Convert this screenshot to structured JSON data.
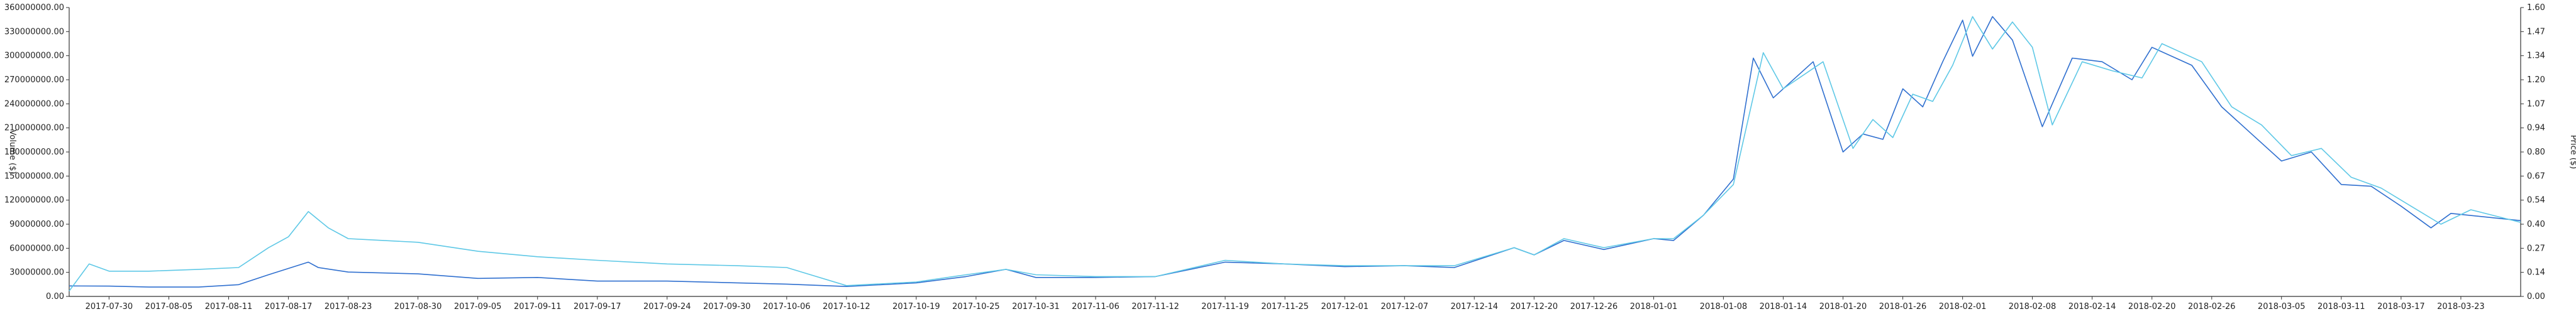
{
  "chart_data": {
    "type": "line",
    "title": "",
    "ylabel_left": "Volume ($)",
    "ylabel_right": "Price ($)",
    "ylim_left": [
      0,
      360000000
    ],
    "ylim_right": [
      0,
      1.6
    ],
    "yticks_left": [
      "0.00",
      "30000000.00",
      "60000000.00",
      "90000000.00",
      "120000000.00",
      "150000000.00",
      "180000000.00",
      "210000000.00",
      "240000000.00",
      "270000000.00",
      "300000000.00",
      "330000000.00",
      "360000000.00"
    ],
    "yticks_right": [
      "0.00",
      "0.14",
      "0.27",
      "0.40",
      "0.54",
      "0.67",
      "0.80",
      "0.94",
      "1.07",
      "1.20",
      "1.34",
      "1.47",
      "1.60"
    ],
    "xlim": [
      "2017-07-26",
      "2018-03-29"
    ],
    "xticks": [
      "2017-07-30",
      "2017-08-05",
      "2017-08-11",
      "2017-08-17",
      "2017-08-23",
      "2017-08-30",
      "2017-09-05",
      "2017-09-11",
      "2017-09-17",
      "2017-09-24",
      "2017-09-30",
      "2017-10-06",
      "2017-10-12",
      "2017-10-19",
      "2017-10-25",
      "2017-10-31",
      "2017-11-06",
      "2017-11-12",
      "2017-11-19",
      "2017-11-25",
      "2017-12-01",
      "2017-12-07",
      "2017-12-14",
      "2017-12-20",
      "2017-12-26",
      "2018-01-01",
      "2018-01-08",
      "2018-01-14",
      "2018-01-20",
      "2018-01-26",
      "2018-02-01",
      "2018-02-08",
      "2018-02-14",
      "2018-02-20",
      "2018-02-26",
      "2018-03-05",
      "2018-03-11",
      "2018-03-17",
      "2018-03-23"
    ],
    "grid": false,
    "colors": {
      "price": "#2f6fcf",
      "volume": "#5ec8e6",
      "axis": "#333333"
    },
    "series": [
      {
        "axis": "right",
        "color": "#2f6fcf",
        "points": [
          [
            "2017-07-26",
            0.058
          ],
          [
            "2017-07-30",
            0.057
          ],
          [
            "2017-08-03",
            0.052
          ],
          [
            "2017-08-08",
            0.052
          ],
          [
            "2017-08-12",
            0.065
          ],
          [
            "2017-08-15",
            0.12
          ],
          [
            "2017-08-19",
            0.19
          ],
          [
            "2017-08-20",
            0.16
          ],
          [
            "2017-08-23",
            0.135
          ],
          [
            "2017-08-30",
            0.125
          ],
          [
            "2017-09-05",
            0.1
          ],
          [
            "2017-09-11",
            0.105
          ],
          [
            "2017-09-17",
            0.085
          ],
          [
            "2017-09-24",
            0.085
          ],
          [
            "2017-10-01",
            0.075
          ],
          [
            "2017-10-06",
            0.068
          ],
          [
            "2017-10-12",
            0.055
          ],
          [
            "2017-10-19",
            0.075
          ],
          [
            "2017-10-24",
            0.11
          ],
          [
            "2017-10-28",
            0.15
          ],
          [
            "2017-10-31",
            0.105
          ],
          [
            "2017-11-06",
            0.105
          ],
          [
            "2017-11-12",
            0.11
          ],
          [
            "2017-11-19",
            0.19
          ],
          [
            "2017-11-25",
            0.18
          ],
          [
            "2017-12-01",
            0.165
          ],
          [
            "2017-12-07",
            0.17
          ],
          [
            "2017-12-12",
            0.16
          ],
          [
            "2017-12-18",
            0.27
          ],
          [
            "2017-12-20",
            0.23
          ],
          [
            "2017-12-23",
            0.31
          ],
          [
            "2017-12-27",
            0.26
          ],
          [
            "2018-01-01",
            0.32
          ],
          [
            "2018-01-03",
            0.31
          ],
          [
            "2018-01-06",
            0.45
          ],
          [
            "2018-01-09",
            0.65
          ],
          [
            "2018-01-11",
            1.32
          ],
          [
            "2018-01-13",
            1.1
          ],
          [
            "2018-01-17",
            1.3
          ],
          [
            "2018-01-20",
            0.8
          ],
          [
            "2018-01-22",
            0.9
          ],
          [
            "2018-01-24",
            0.87
          ],
          [
            "2018-01-26",
            1.15
          ],
          [
            "2018-01-28",
            1.05
          ],
          [
            "2018-01-30",
            1.3
          ],
          [
            "2018-02-01",
            1.53
          ],
          [
            "2018-02-02",
            1.33
          ],
          [
            "2018-02-04",
            1.55
          ],
          [
            "2018-02-06",
            1.42
          ],
          [
            "2018-02-09",
            0.94
          ],
          [
            "2018-02-12",
            1.32
          ],
          [
            "2018-02-15",
            1.3
          ],
          [
            "2018-02-18",
            1.2
          ],
          [
            "2018-02-20",
            1.38
          ],
          [
            "2018-02-24",
            1.28
          ],
          [
            "2018-02-27",
            1.05
          ],
          [
            "2018-03-02",
            0.9
          ],
          [
            "2018-03-05",
            0.75
          ],
          [
            "2018-03-08",
            0.8
          ],
          [
            "2018-03-11",
            0.62
          ],
          [
            "2018-03-14",
            0.61
          ],
          [
            "2018-03-17",
            0.5
          ],
          [
            "2018-03-20",
            0.38
          ],
          [
            "2018-03-22",
            0.46
          ],
          [
            "2018-03-29",
            0.42
          ]
        ]
      },
      {
        "axis": "right",
        "color": "#5ec8e6",
        "points": [
          [
            "2017-07-26",
            0.03
          ],
          [
            "2017-07-28",
            0.18
          ],
          [
            "2017-07-30",
            0.14
          ],
          [
            "2017-08-03",
            0.14
          ],
          [
            "2017-08-08",
            0.15
          ],
          [
            "2017-08-12",
            0.16
          ],
          [
            "2017-08-15",
            0.27
          ],
          [
            "2017-08-17",
            0.33
          ],
          [
            "2017-08-19",
            0.47
          ],
          [
            "2017-08-21",
            0.38
          ],
          [
            "2017-08-23",
            0.32
          ],
          [
            "2017-08-30",
            0.3
          ],
          [
            "2017-09-05",
            0.25
          ],
          [
            "2017-09-11",
            0.22
          ],
          [
            "2017-09-17",
            0.2
          ],
          [
            "2017-09-24",
            0.18
          ],
          [
            "2017-10-01",
            0.17
          ],
          [
            "2017-10-06",
            0.16
          ],
          [
            "2017-10-12",
            0.06
          ],
          [
            "2017-10-19",
            0.08
          ],
          [
            "2017-10-24",
            0.12
          ],
          [
            "2017-10-28",
            0.15
          ],
          [
            "2017-10-31",
            0.12
          ],
          [
            "2017-11-06",
            0.11
          ],
          [
            "2017-11-12",
            0.11
          ],
          [
            "2017-11-19",
            0.2
          ],
          [
            "2017-11-25",
            0.18
          ],
          [
            "2017-12-01",
            0.17
          ],
          [
            "2017-12-07",
            0.17
          ],
          [
            "2017-12-12",
            0.17
          ],
          [
            "2017-12-18",
            0.27
          ],
          [
            "2017-12-20",
            0.23
          ],
          [
            "2017-12-23",
            0.32
          ],
          [
            "2017-12-27",
            0.27
          ],
          [
            "2018-01-01",
            0.32
          ],
          [
            "2018-01-03",
            0.32
          ],
          [
            "2018-01-06",
            0.45
          ],
          [
            "2018-01-09",
            0.62
          ],
          [
            "2018-01-12",
            1.35
          ],
          [
            "2018-01-14",
            1.15
          ],
          [
            "2018-01-18",
            1.3
          ],
          [
            "2018-01-21",
            0.82
          ],
          [
            "2018-01-23",
            0.98
          ],
          [
            "2018-01-25",
            0.88
          ],
          [
            "2018-01-27",
            1.12
          ],
          [
            "2018-01-29",
            1.08
          ],
          [
            "2018-01-31",
            1.28
          ],
          [
            "2018-02-02",
            1.55
          ],
          [
            "2018-02-04",
            1.37
          ],
          [
            "2018-02-06",
            1.52
          ],
          [
            "2018-02-08",
            1.38
          ],
          [
            "2018-02-10",
            0.95
          ],
          [
            "2018-02-13",
            1.3
          ],
          [
            "2018-02-16",
            1.25
          ],
          [
            "2018-02-19",
            1.21
          ],
          [
            "2018-02-21",
            1.4
          ],
          [
            "2018-02-25",
            1.3
          ],
          [
            "2018-02-28",
            1.05
          ],
          [
            "2018-03-03",
            0.95
          ],
          [
            "2018-03-06",
            0.78
          ],
          [
            "2018-03-09",
            0.82
          ],
          [
            "2018-03-12",
            0.66
          ],
          [
            "2018-03-15",
            0.6
          ],
          [
            "2018-03-18",
            0.5
          ],
          [
            "2018-03-21",
            0.4
          ],
          [
            "2018-03-24",
            0.48
          ],
          [
            "2018-03-29",
            0.41
          ]
        ]
      }
    ]
  }
}
